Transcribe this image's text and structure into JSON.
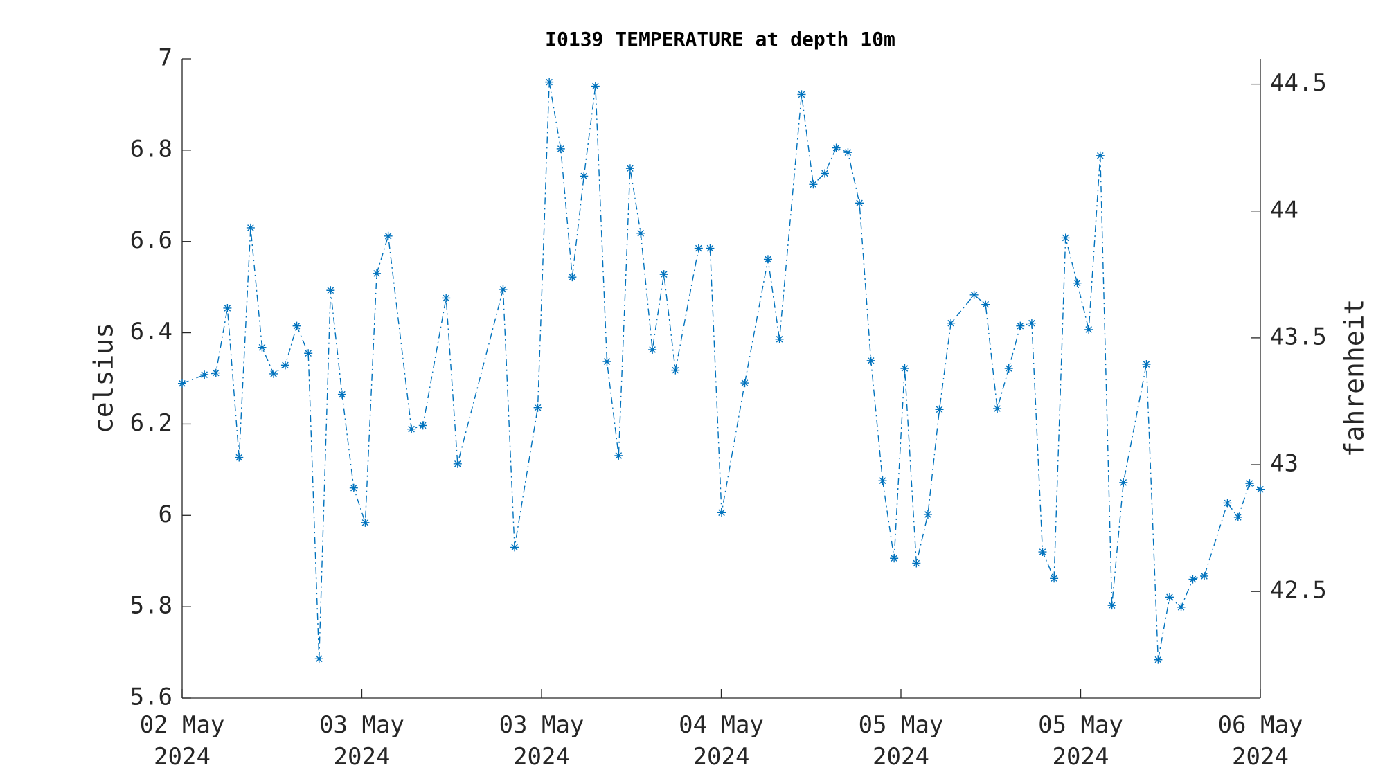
{
  "chart_data": {
    "type": "line",
    "title": "I0139 TEMPERATURE at depth 10m",
    "ylabel": "celsius",
    "y2label": "fahrenheit",
    "x": [
      0,
      0.124,
      0.188,
      0.252,
      0.317,
      0.381,
      0.445,
      0.509,
      0.574,
      0.638,
      0.702,
      0.762,
      0.826,
      0.89,
      0.955,
      1.019,
      1.083,
      1.147,
      1.276,
      1.34,
      1.469,
      1.533,
      1.786,
      1.85,
      1.979,
      2.043,
      2.107,
      2.171,
      2.236,
      2.3,
      2.364,
      2.429,
      2.493,
      2.552,
      2.617,
      2.681,
      2.745,
      2.874,
      2.938,
      3.002,
      3.131,
      3.26,
      3.324,
      3.447,
      3.512,
      3.576,
      3.64,
      3.705,
      3.769,
      3.833,
      3.898,
      3.962,
      4.021,
      4.086,
      4.15,
      4.214,
      4.278,
      4.407,
      4.471,
      4.536,
      4.6,
      4.664,
      4.728,
      4.788,
      4.852,
      4.916,
      4.981,
      5.045,
      5.109,
      5.174,
      5.238,
      5.366,
      5.431,
      5.495,
      5.559,
      5.624,
      5.688,
      5.817,
      5.876,
      5.94,
      6.0
    ],
    "series": [
      {
        "name": "temperature",
        "color": "#0072bd",
        "values": [
          6.289,
          6.308,
          6.312,
          6.454,
          6.127,
          6.63,
          6.368,
          6.31,
          6.329,
          6.415,
          6.355,
          5.686,
          6.493,
          6.265,
          6.06,
          5.984,
          6.53,
          6.612,
          6.189,
          6.197,
          6.476,
          6.113,
          6.495,
          5.93,
          6.236,
          6.949,
          6.803,
          6.522,
          6.743,
          6.94,
          6.337,
          6.131,
          6.76,
          6.618,
          6.363,
          6.528,
          6.318,
          6.585,
          6.585,
          6.006,
          6.29,
          6.561,
          6.386,
          6.922,
          6.725,
          6.749,
          6.805,
          6.795,
          6.684,
          6.339,
          6.076,
          5.906,
          6.322,
          5.895,
          6.002,
          6.232,
          6.421,
          6.483,
          6.462,
          6.234,
          6.322,
          6.415,
          6.421,
          5.92,
          5.862,
          6.608,
          6.509,
          6.407,
          6.788,
          5.803,
          6.072,
          6.331,
          5.684,
          5.821,
          5.799,
          5.86,
          5.867,
          6.027,
          5.996,
          6.07,
          6.057
        ]
      }
    ],
    "xlim": [
      0,
      6
    ],
    "xticks": [
      {
        "value": 0,
        "label": "02 May\n2024"
      },
      {
        "value": 1,
        "label": "03 May\n2024"
      },
      {
        "value": 2,
        "label": "03 May\n2024"
      },
      {
        "value": 3,
        "label": "04 May\n2024"
      },
      {
        "value": 4,
        "label": "05 May\n2024"
      },
      {
        "value": 5,
        "label": "05 May\n2024"
      },
      {
        "value": 6,
        "label": "06 May\n2024"
      }
    ],
    "ylim": [
      5.6,
      7
    ],
    "yticks": [
      5.6,
      5.8,
      6,
      6.2,
      6.4,
      6.6,
      6.8,
      7
    ],
    "y2lim": [
      42.08,
      44.6
    ],
    "y2ticks": [
      42.5,
      43,
      43.5,
      44,
      44.5
    ],
    "line_style": "dashdot",
    "marker": "asterisk",
    "grid": false
  }
}
